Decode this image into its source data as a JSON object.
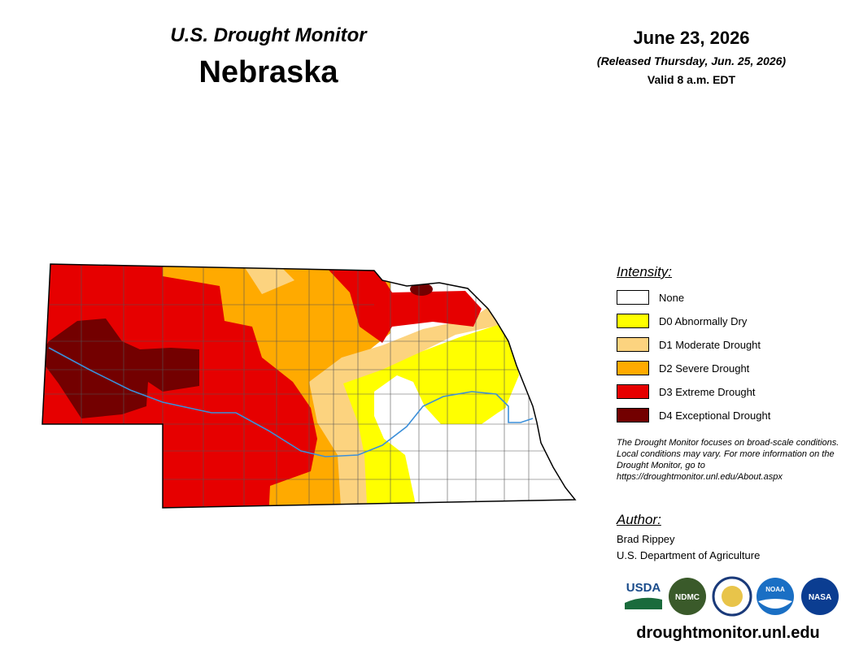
{
  "header": {
    "subtitle": "U.S. Drought Monitor",
    "title": "Nebraska",
    "date": "June 23, 2026",
    "released": "(Released Thursday, Jun. 25, 2026)",
    "valid": "Valid 8 a.m. EDT"
  },
  "legend": {
    "title": "Intensity:",
    "items": [
      {
        "label": "None",
        "color": "#ffffff"
      },
      {
        "label": "D0 Abnormally Dry",
        "color": "#ffff00"
      },
      {
        "label": "D1 Moderate Drought",
        "color": "#fcd37f"
      },
      {
        "label": "D2 Severe Drought",
        "color": "#ffaa00"
      },
      {
        "label": "D3 Extreme Drought",
        "color": "#e60000"
      },
      {
        "label": "D4 Exceptional Drought",
        "color": "#730000"
      }
    ]
  },
  "note": "The Drought Monitor focuses on broad-scale conditions. Local conditions may vary. For more information on the Drought Monitor, go to https://droughtmonitor.unl.edu/About.aspx",
  "author": {
    "heading": "Author:",
    "name": "Brad Rippey",
    "org": "U.S. Department of Agriculture"
  },
  "logos": [
    "USDA",
    "NDMC",
    "NOAA",
    "NASA"
  ],
  "url": "droughtmonitor.unl.edu"
}
